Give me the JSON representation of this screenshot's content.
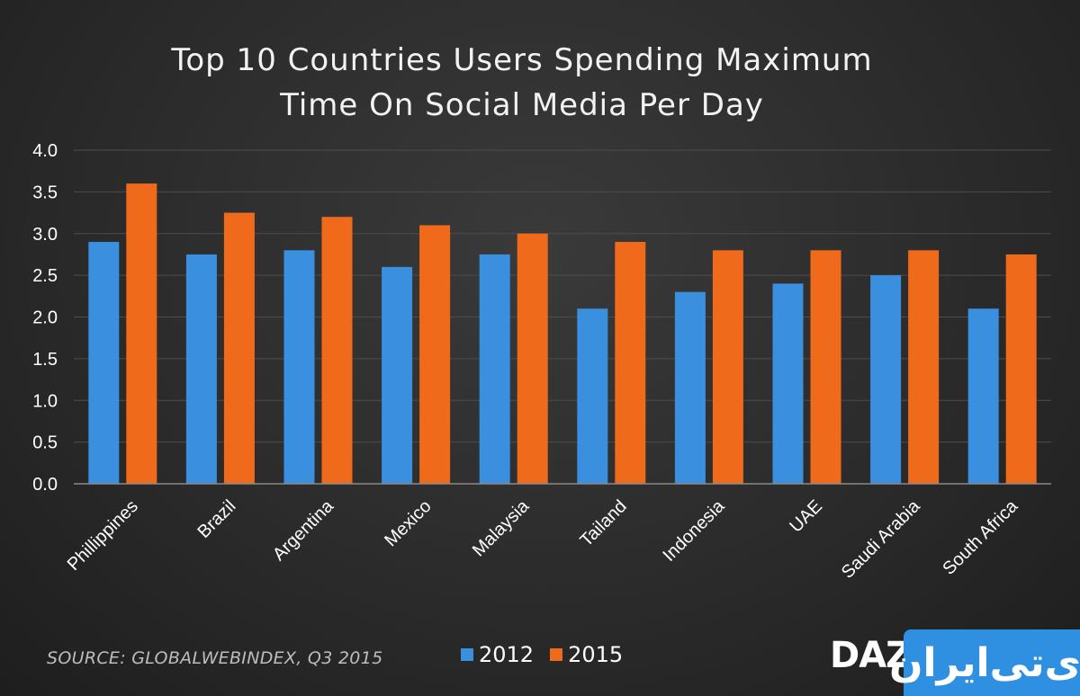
{
  "chart_data": {
    "type": "bar",
    "title_lines": [
      "Top 10 Countries Users Spending Maximum",
      "Time On Social Media Per Day"
    ],
    "categories": [
      "Phillippines",
      "Brazil",
      "Argentina",
      "Mexico",
      "Malaysia",
      "Tailand",
      "Indonesia",
      "UAE",
      "Saudi Arabia",
      "South Africa"
    ],
    "series": [
      {
        "name": "2012",
        "color": "#3a8fdf",
        "values": [
          2.9,
          2.75,
          2.8,
          2.6,
          2.75,
          2.1,
          2.3,
          2.4,
          2.5,
          2.1
        ]
      },
      {
        "name": "2015",
        "color": "#f06a1c",
        "values": [
          3.6,
          3.25,
          3.2,
          3.1,
          3.0,
          2.9,
          2.8,
          2.8,
          2.8,
          2.75
        ]
      }
    ],
    "ylim": [
      0,
      4
    ],
    "yticks": [
      "0.0",
      "0.5",
      "1.0",
      "1.5",
      "2.0",
      "2.5",
      "3.0",
      "3.5",
      "4.0"
    ],
    "grid": true,
    "legend_position": "bottom"
  },
  "source_text": "SOURCE: GLOBALWEBINDEX, Q3 2015",
  "logo": {
    "daz": "DAZ",
    "box_text": "آی‌تی‌ایران"
  }
}
